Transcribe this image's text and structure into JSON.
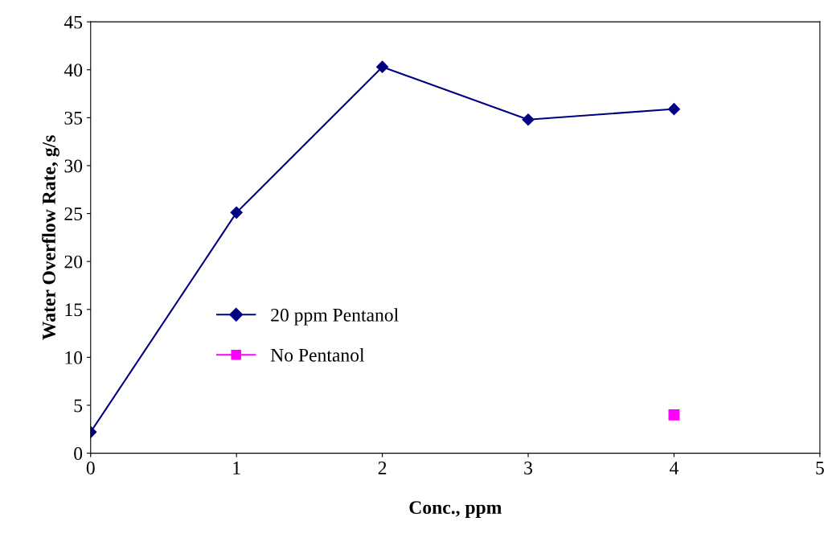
{
  "chart_data": {
    "type": "line",
    "xlabel": "Conc., ppm",
    "ylabel": "Water Overflow Rate, g/s",
    "x": [
      0,
      1,
      2,
      3,
      4
    ],
    "series": [
      {
        "name": "20 ppm Pentanol",
        "color": "#000080",
        "values": [
          2.2,
          25.1,
          40.3,
          34.8,
          35.9
        ],
        "marker": "diamond"
      },
      {
        "name": "No Pentanol",
        "type": "scatter",
        "color": "#ff00ff",
        "x": [
          4
        ],
        "values": [
          4.0
        ],
        "marker": "square"
      }
    ],
    "xlim": [
      0,
      5
    ],
    "xticks": [
      0,
      1,
      2,
      3,
      4,
      5
    ],
    "ylim": [
      0,
      45
    ],
    "yticks": [
      0,
      5,
      10,
      15,
      20,
      25,
      30,
      35,
      40,
      45
    ],
    "grid": false,
    "legend": "left"
  }
}
